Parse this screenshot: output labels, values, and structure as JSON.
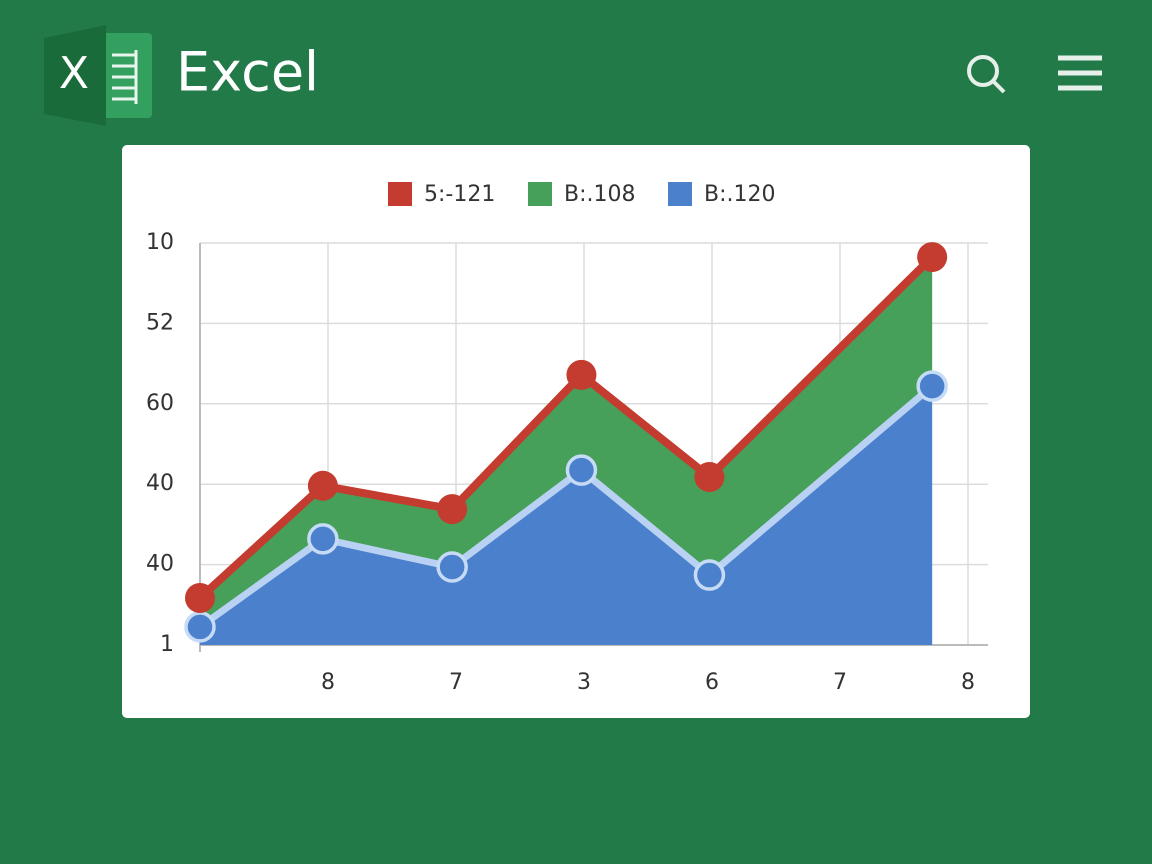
{
  "header": {
    "logo_letter": "X",
    "title": "Excel"
  },
  "chart_data": {
    "type": "area",
    "stacked": true,
    "x": [
      0,
      0.96,
      1.97,
      2.98,
      3.98,
      5.72
    ],
    "series": [
      {
        "name": "5:-121",
        "color": "#c43b2f",
        "type": "line",
        "values": [
          11.7,
          39.6,
          33.8,
          67.2,
          41.8,
          96.5
        ]
      },
      {
        "name": "B:.108",
        "color": "#46a05a",
        "type": "area",
        "values": [
          7.2,
          13.2,
          14.4,
          23.7,
          24.4,
          32.1
        ]
      },
      {
        "name": "B:.120",
        "color": "#4a80cc",
        "type": "area",
        "values": [
          4.5,
          26.4,
          19.4,
          43.5,
          17.4,
          64.4
        ]
      }
    ],
    "xlim": [
      0,
      6
    ],
    "xticks": [
      {
        "value": 1,
        "label": "8"
      },
      {
        "value": 2,
        "label": "7"
      },
      {
        "value": 3,
        "label": "3"
      },
      {
        "value": 4,
        "label": "6"
      },
      {
        "value": 5,
        "label": "7"
      },
      {
        "value": 6,
        "label": "8"
      }
    ],
    "ylim": [
      0,
      100
    ],
    "yticks": [
      {
        "value": 0,
        "label": "1"
      },
      {
        "value": 20,
        "label": "40"
      },
      40,
      60,
      {
        "value": 80,
        "label": "52"
      },
      {
        "value": 100,
        "label": "10"
      }
    ],
    "grid": true,
    "legend": "top"
  }
}
